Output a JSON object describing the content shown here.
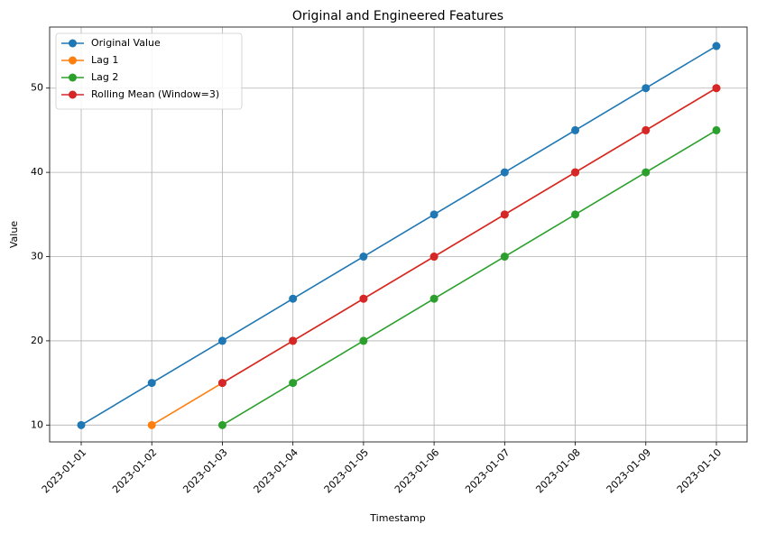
{
  "chart_data": {
    "type": "line",
    "title": "Original and Engineered Features",
    "xlabel": "Timestamp",
    "ylabel": "Value",
    "x": [
      "2023-01-01",
      "2023-01-02",
      "2023-01-03",
      "2023-01-04",
      "2023-01-05",
      "2023-01-06",
      "2023-01-07",
      "2023-01-08",
      "2023-01-09",
      "2023-01-10"
    ],
    "ylim": [
      8,
      57.25
    ],
    "yticks": [
      10,
      20,
      30,
      40,
      50
    ],
    "grid": true,
    "legend_position": "top-left",
    "series": [
      {
        "name": "Original Value",
        "color": "#1f77b4",
        "values": [
          10,
          15,
          20,
          25,
          30,
          35,
          40,
          45,
          50,
          55
        ]
      },
      {
        "name": "Lag 1",
        "color": "#ff7f0e",
        "values": [
          null,
          10,
          15,
          20,
          25,
          30,
          35,
          40,
          45,
          50
        ]
      },
      {
        "name": "Lag 2",
        "color": "#2ca02c",
        "values": [
          null,
          null,
          10,
          15,
          20,
          25,
          30,
          35,
          40,
          45
        ]
      },
      {
        "name": "Rolling Mean (Window=3)",
        "color": "#d62728",
        "values": [
          null,
          null,
          15,
          20,
          25,
          30,
          35,
          40,
          45,
          50
        ]
      }
    ]
  }
}
